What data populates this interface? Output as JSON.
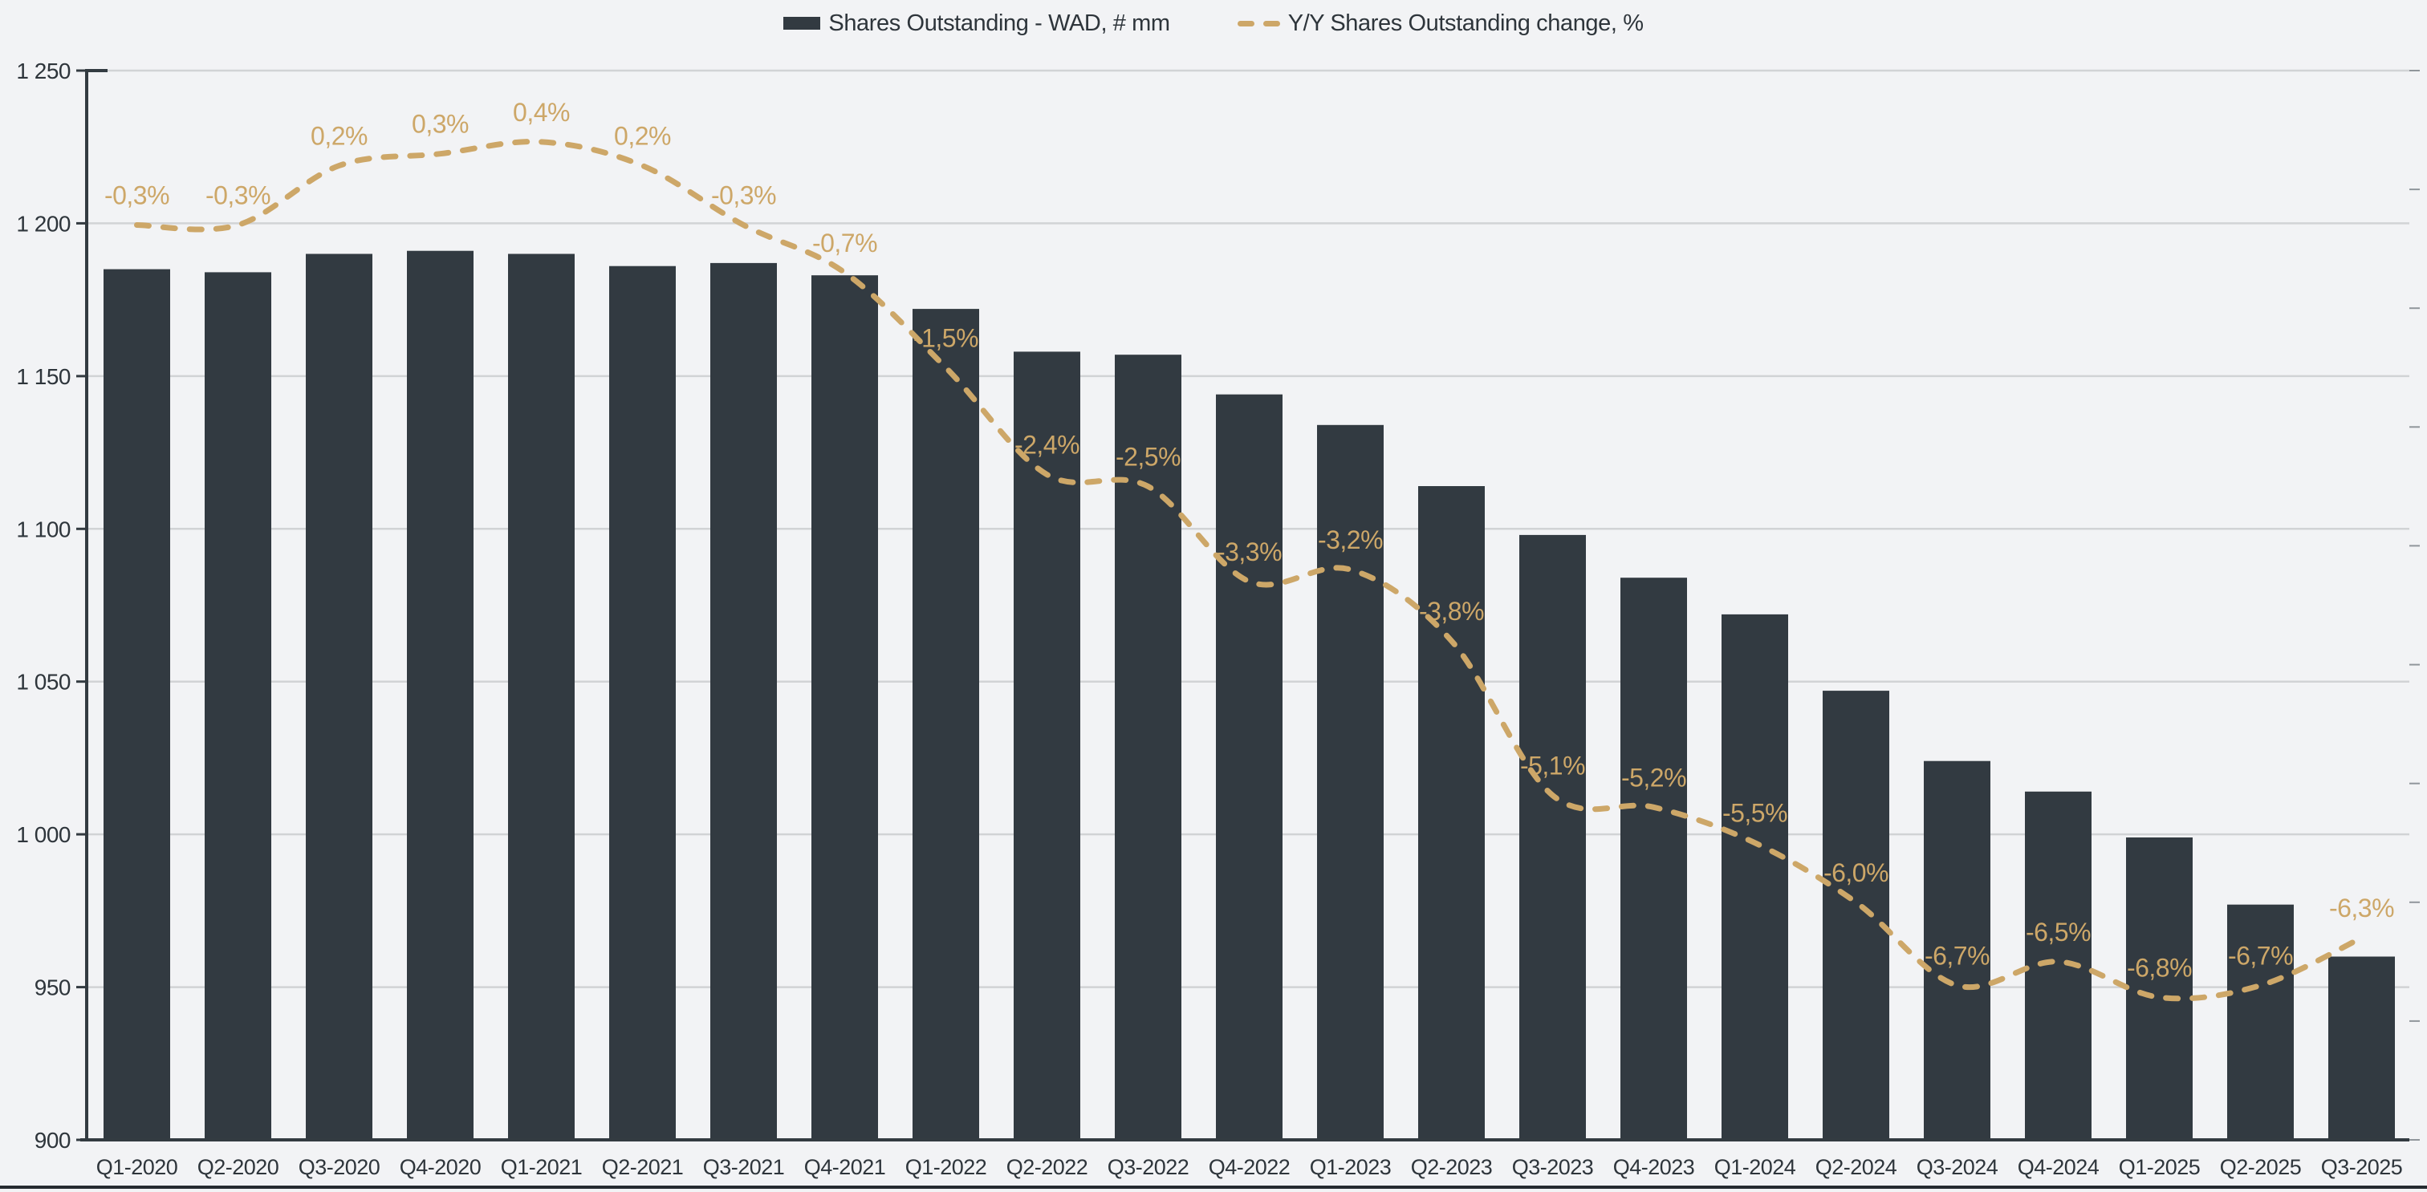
{
  "colors": {
    "background": "#f2f3f5",
    "bar": "#323a41",
    "line_gold": "#cda768",
    "gridline": "#d1d3d5",
    "axis": "#333b41",
    "text": "#2e353b",
    "right_tick": "#90969b",
    "bottom_border": "#262b30"
  },
  "chart_data": {
    "type": "combo-bar-line",
    "categories": [
      "Q1-2020",
      "Q2-2020",
      "Q3-2020",
      "Q4-2020",
      "Q1-2021",
      "Q2-2021",
      "Q3-2021",
      "Q4-2021",
      "Q1-2022",
      "Q2-2022",
      "Q3-2022",
      "Q4-2022",
      "Q1-2023",
      "Q2-2023",
      "Q3-2023",
      "Q4-2023",
      "Q1-2024",
      "Q2-2024",
      "Q3-2024",
      "Q4-2024",
      "Q1-2025",
      "Q2-2025",
      "Q3-2025"
    ],
    "series": [
      {
        "name": "Shares Outstanding - WAD, # mm",
        "type": "bar",
        "axis": "left",
        "values": [
          1185,
          1184,
          1190,
          1191,
          1190,
          1186,
          1187,
          1183,
          1172,
          1158,
          1157,
          1144,
          1134,
          1114,
          1098,
          1084,
          1072,
          1047,
          1024,
          1014,
          999,
          977,
          960
        ]
      },
      {
        "name": "Y/Y Shares Outstanding change, %",
        "type": "line",
        "line_style": "dashed",
        "axis": "right",
        "values": [
          -0.3,
          -0.3,
          0.2,
          0.3,
          0.4,
          0.2,
          -0.3,
          -0.7,
          -1.5,
          -2.4,
          -2.5,
          -3.3,
          -3.2,
          -3.8,
          -5.1,
          -5.2,
          -5.5,
          -6.0,
          -6.7,
          -6.5,
          -6.8,
          -6.7,
          -6.3
        ],
        "point_labels": [
          "-0,3%",
          "-0,3%",
          "0,2%",
          "0,3%",
          "0,4%",
          "0,2%",
          "-0,3%",
          "-0,7%",
          "-1,5%",
          "-2,4%",
          "-2,5%",
          "-3,3%",
          "-3,2%",
          "-3,8%",
          "-5,1%",
          "-5,2%",
          "-5,5%",
          "-6,0%",
          "-6,7%",
          "-6,5%",
          "-6,8%",
          "-6,7%",
          "-6,3%"
        ]
      }
    ],
    "left_axis": {
      "min": 900,
      "max": 1250,
      "step": 50,
      "ticks": [
        1250,
        1200,
        1150,
        1100,
        1050,
        1000,
        950,
        900
      ],
      "tick_labels": [
        "1 250",
        "1 200",
        "1 150",
        "1 100",
        "1 050",
        "1 000",
        "950",
        "900"
      ]
    },
    "right_axis": {
      "min": -8,
      "max": 1,
      "step": 1,
      "labels_visible": false
    },
    "grid": true,
    "legend_position": "top-center",
    "number_format": "decimal-comma"
  }
}
